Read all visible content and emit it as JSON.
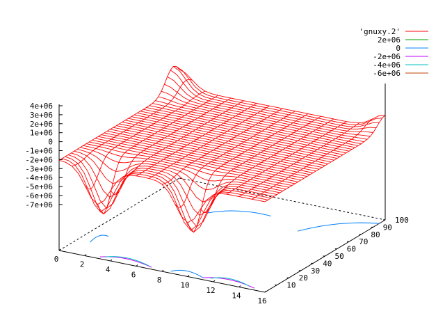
{
  "chart_data": {
    "type": "surface",
    "title": "",
    "xlabel": "",
    "ylabel": "",
    "zlabel": "",
    "xlim": [
      0,
      16
    ],
    "ylim": [
      0,
      100
    ],
    "zlim": [
      -7000000,
      4000000
    ],
    "x_ticks": [
      "0",
      "2",
      "4",
      "6",
      "8",
      "10",
      "12",
      "14",
      "16"
    ],
    "y_ticks": [
      "10",
      "20",
      "30",
      "40",
      "50",
      "60",
      "70",
      "80",
      "90",
      "100"
    ],
    "z_ticks": [
      "4e+06",
      "3e+06",
      "2e+06",
      "1e+06",
      "0",
      "-1e+06",
      "-2e+06",
      "-3e+06",
      "-4e+06",
      "-5e+06",
      "-6e+06",
      "-7e+06"
    ],
    "legend": {
      "placement": "top-right",
      "entries": [
        {
          "label": "'gnuxy.2'",
          "color": "#ff0000"
        },
        {
          "label": "2e+06",
          "color": "#00a000"
        },
        {
          "label": "0",
          "color": "#0080ff"
        },
        {
          "label": "-2e+06",
          "color": "#c000ff"
        },
        {
          "label": "-4e+06",
          "color": "#00c0c0"
        },
        {
          "label": "-6e+06",
          "color": "#c04000"
        }
      ]
    },
    "surface": {
      "series": "'gnuxy.2'",
      "color": "#ff0000",
      "baseline_z": 0,
      "features": [
        {
          "kind": "peak",
          "x": 0,
          "y": 95,
          "z": 3500000
        },
        {
          "kind": "peak",
          "x": 16,
          "y": 100,
          "z": 2000000
        },
        {
          "kind": "trough",
          "x": 3,
          "y": 5,
          "z": -7000000
        },
        {
          "kind": "trough",
          "x": 10,
          "y": 5,
          "z": -7000000
        }
      ]
    },
    "contours": [
      {
        "level": "0",
        "color": "#0080ff"
      },
      {
        "level": "-2e+06",
        "color": "#c000ff"
      },
      {
        "level": "-4e+06",
        "color": "#00c0c0"
      },
      {
        "level": "2e+06",
        "color": "#00a000"
      }
    ]
  }
}
